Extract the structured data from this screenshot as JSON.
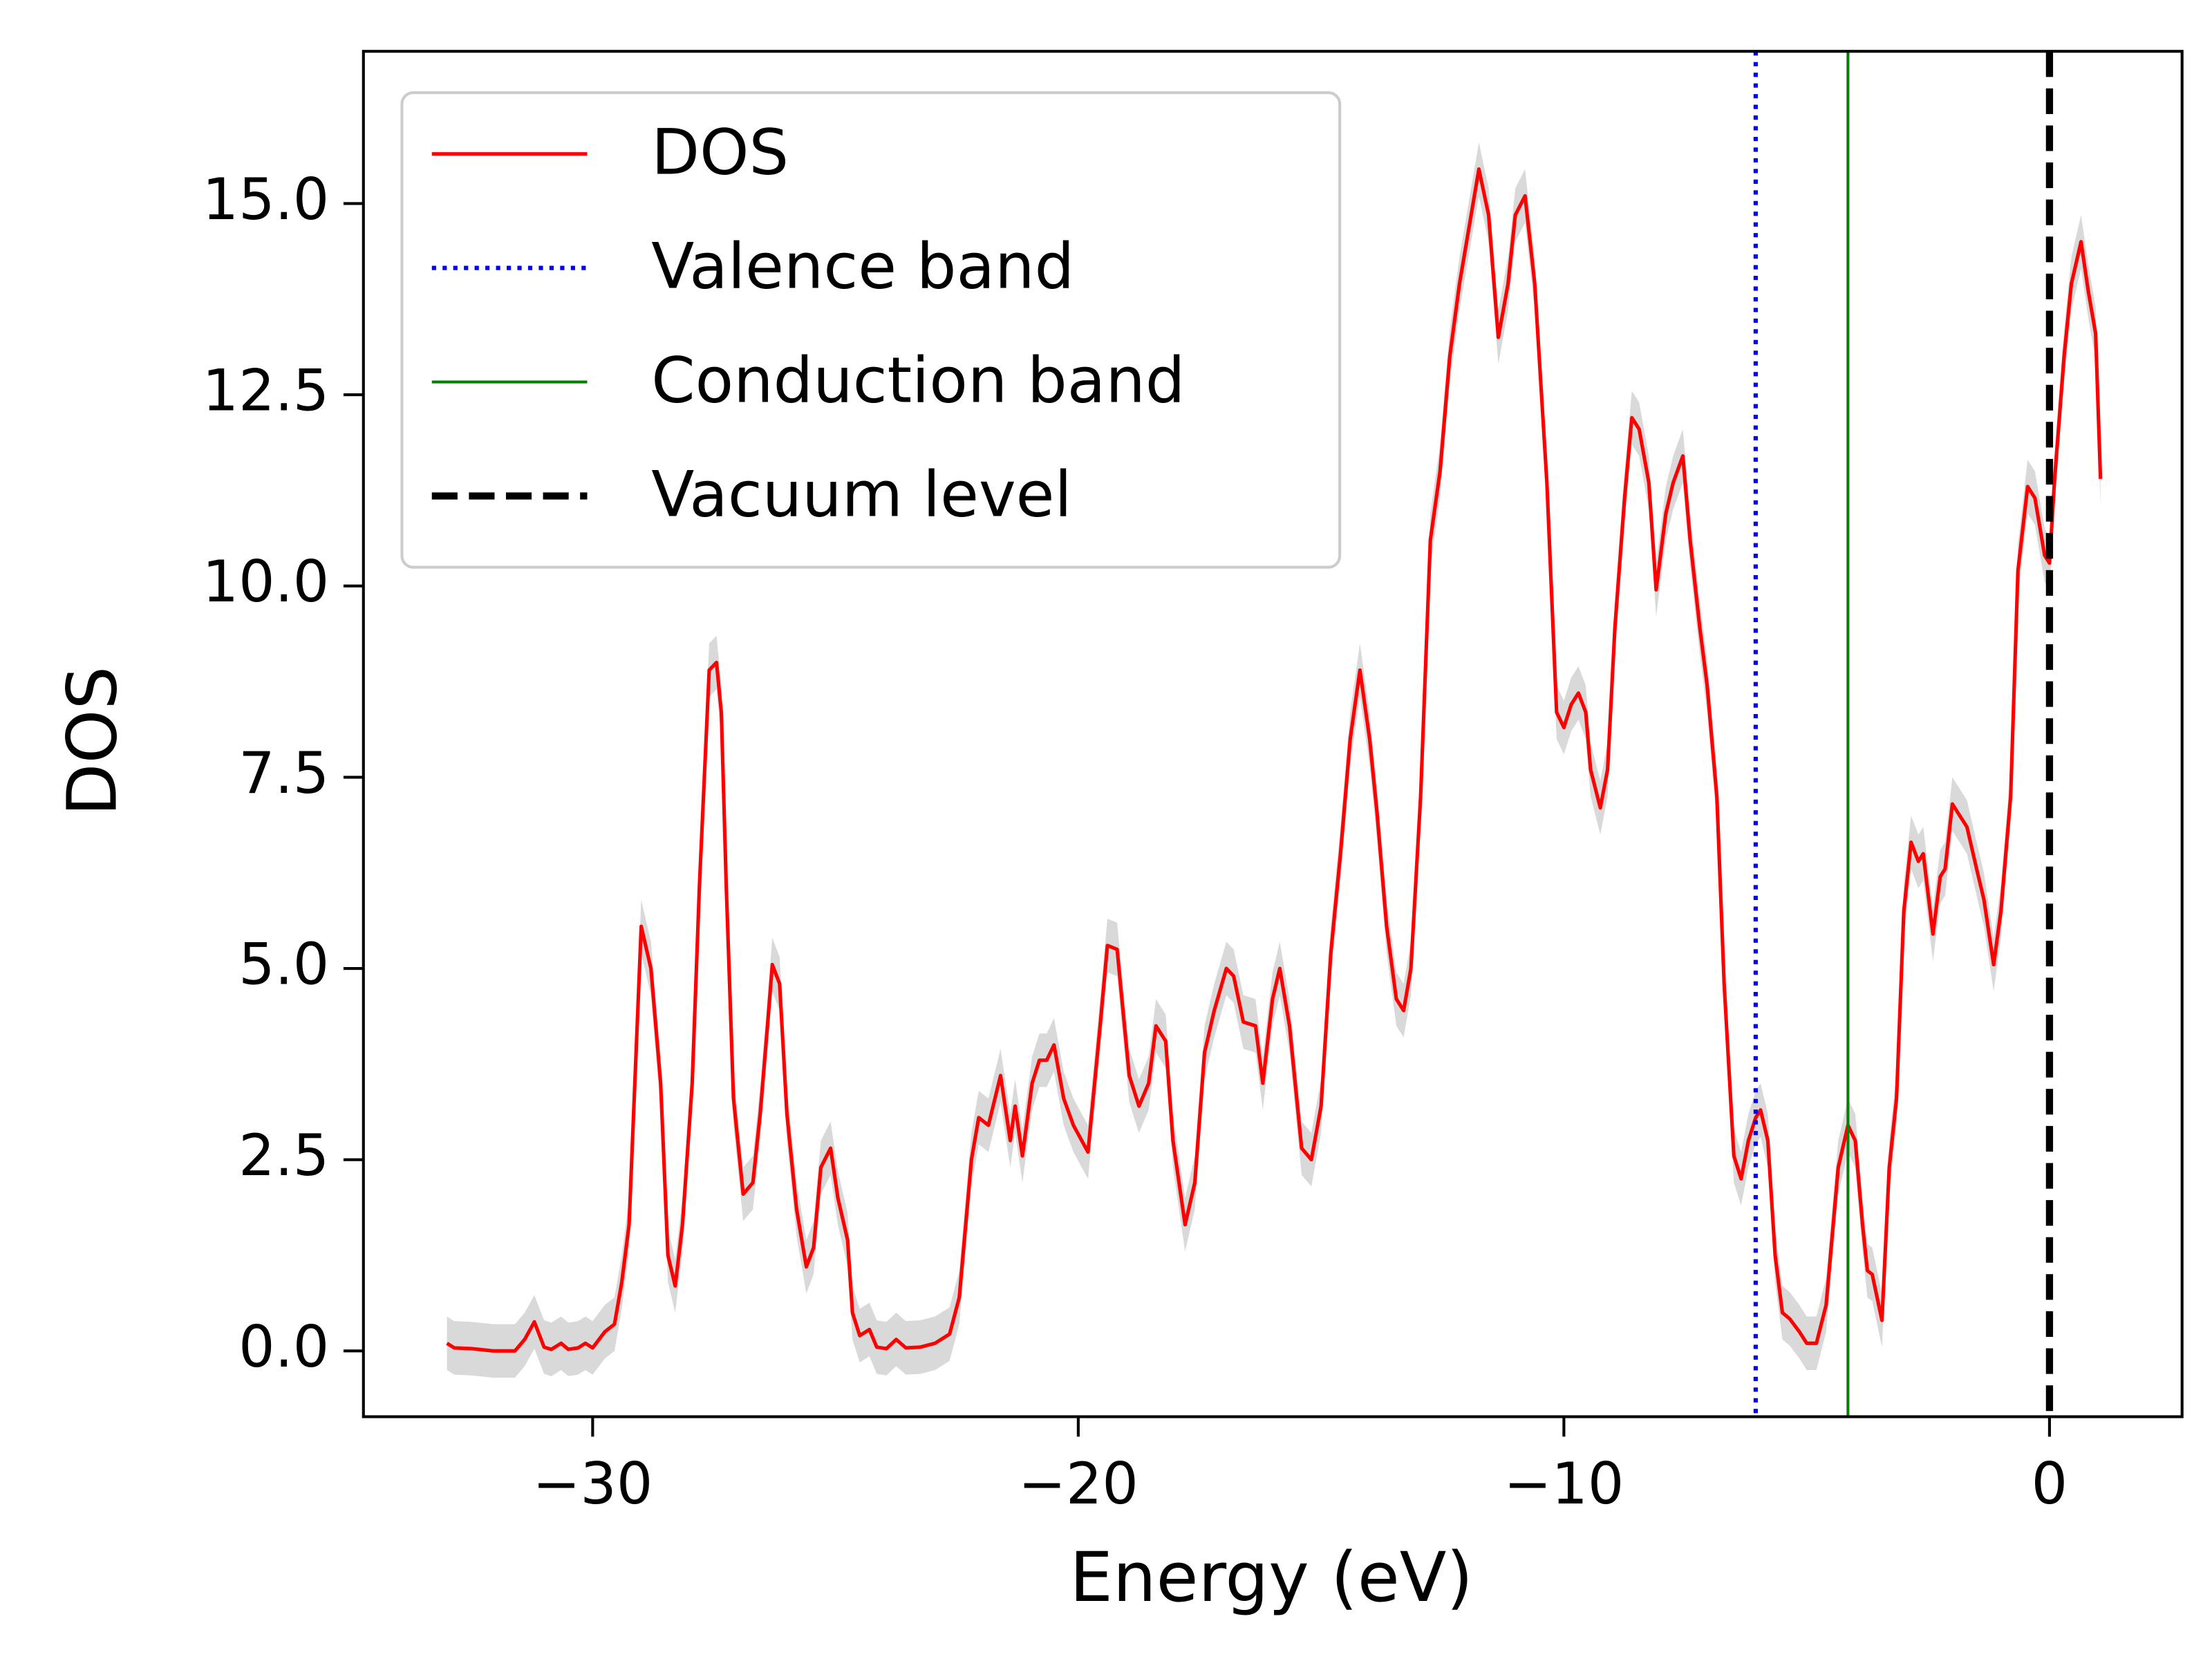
{
  "chart_data": {
    "type": "line",
    "xlabel": "Energy (eV)",
    "ylabel": "DOS",
    "x": [
      -33.0,
      -32.85,
      -32.5,
      -32.05,
      -31.6,
      -31.4,
      -31.2,
      -31.0,
      -30.85,
      -30.65,
      -30.5,
      -30.3,
      -30.15,
      -30.0,
      -29.75,
      -29.55,
      -29.4,
      -29.25,
      -29.0,
      -28.8,
      -28.6,
      -28.45,
      -28.3,
      -28.15,
      -27.95,
      -27.8,
      -27.6,
      -27.45,
      -27.35,
      -27.25,
      -27.1,
      -26.9,
      -26.7,
      -26.55,
      -26.4,
      -26.3,
      -26.15,
      -26.0,
      -25.8,
      -25.6,
      -25.45,
      -25.3,
      -25.1,
      -24.95,
      -24.75,
      -24.65,
      -24.5,
      -24.3,
      -24.15,
      -23.95,
      -23.75,
      -23.55,
      -23.25,
      -22.95,
      -22.65,
      -22.45,
      -22.2,
      -22.05,
      -21.85,
      -21.6,
      -21.4,
      -21.3,
      -21.15,
      -20.95,
      -20.8,
      -20.65,
      -20.5,
      -20.3,
      -20.1,
      -19.8,
      -19.55,
      -19.4,
      -19.2,
      -18.95,
      -18.75,
      -18.55,
      -18.4,
      -18.2,
      -18.05,
      -17.8,
      -17.6,
      -17.4,
      -17.2,
      -16.95,
      -16.8,
      -16.6,
      -16.35,
      -16.2,
      -16.0,
      -15.85,
      -15.65,
      -15.4,
      -15.2,
      -15.0,
      -14.8,
      -14.6,
      -14.4,
      -14.2,
      -14.0,
      -13.85,
      -13.65,
      -13.45,
      -13.3,
      -13.15,
      -12.95,
      -12.75,
      -12.55,
      -12.35,
      -12.15,
      -11.95,
      -11.75,
      -11.55,
      -11.35,
      -11.15,
      -11.0,
      -10.8,
      -10.6,
      -10.35,
      -10.15,
      -10.0,
      -9.85,
      -9.7,
      -9.55,
      -9.45,
      -9.25,
      -9.1,
      -8.95,
      -8.75,
      -8.6,
      -8.45,
      -8.25,
      -8.1,
      -7.9,
      -7.75,
      -7.55,
      -7.4,
      -7.2,
      -7.05,
      -6.85,
      -6.7,
      -6.5,
      -6.35,
      -6.2,
      -6.05,
      -5.95,
      -5.8,
      -5.65,
      -5.5,
      -5.35,
      -5.15,
      -5.0,
      -4.8,
      -4.6,
      -4.35,
      -4.15,
      -4.0,
      -3.85,
      -3.75,
      -3.65,
      -3.45,
      -3.3,
      -3.15,
      -3.0,
      -2.85,
      -2.7,
      -2.6,
      -2.4,
      -2.25,
      -2.15,
      -2.0,
      -1.85,
      -1.7,
      -1.5,
      -1.35,
      -1.15,
      -1.0,
      -0.8,
      -0.65,
      -0.45,
      -0.3,
      -0.1,
      0.0,
      0.1,
      0.3,
      0.45,
      0.65,
      0.8,
      0.95,
      1.05
    ],
    "series": [
      {
        "name": "DOS",
        "color": "#ff0000",
        "shade": 0.35,
        "shade_color": "#d9d9d9",
        "values": [
          0.1,
          0.04,
          0.03,
          0.0,
          0.0,
          0.15,
          0.38,
          0.05,
          0.02,
          0.1,
          0.02,
          0.04,
          0.1,
          0.04,
          0.25,
          0.35,
          0.9,
          1.65,
          5.55,
          5.0,
          3.5,
          1.25,
          0.85,
          1.65,
          3.5,
          6.1,
          8.9,
          9.0,
          8.35,
          6.1,
          3.3,
          2.05,
          2.2,
          3.1,
          4.25,
          5.05,
          4.8,
          3.1,
          1.85,
          1.1,
          1.35,
          2.4,
          2.65,
          2.0,
          1.45,
          0.5,
          0.2,
          0.28,
          0.05,
          0.03,
          0.15,
          0.04,
          0.05,
          0.1,
          0.22,
          0.7,
          2.5,
          3.05,
          2.95,
          3.6,
          2.75,
          3.2,
          2.55,
          3.5,
          3.8,
          3.8,
          4.0,
          3.3,
          2.95,
          2.6,
          4.25,
          5.3,
          5.25,
          3.6,
          3.2,
          3.5,
          4.25,
          4.05,
          2.75,
          1.65,
          2.2,
          3.9,
          4.45,
          5.0,
          4.9,
          4.3,
          4.25,
          3.5,
          4.6,
          5.0,
          4.25,
          2.65,
          2.5,
          3.2,
          5.2,
          6.5,
          8.0,
          8.9,
          8.0,
          7.05,
          5.55,
          4.6,
          4.45,
          5.0,
          7.25,
          10.6,
          11.5,
          13.0,
          13.95,
          14.7,
          15.45,
          14.85,
          13.25,
          13.95,
          14.85,
          15.1,
          13.95,
          11.35,
          8.35,
          8.15,
          8.45,
          8.6,
          8.35,
          7.6,
          7.1,
          7.6,
          9.45,
          11.15,
          12.2,
          12.05,
          11.35,
          9.95,
          10.95,
          11.35,
          11.7,
          10.6,
          9.45,
          8.7,
          7.25,
          4.8,
          2.55,
          2.25,
          2.75,
          3.05,
          3.15,
          2.75,
          1.25,
          0.5,
          0.42,
          0.25,
          0.1,
          0.1,
          0.6,
          2.4,
          2.95,
          2.75,
          1.65,
          1.05,
          1.0,
          0.4,
          2.4,
          3.3,
          5.75,
          6.65,
          6.4,
          6.5,
          5.45,
          6.2,
          6.3,
          7.15,
          7.0,
          6.85,
          6.3,
          5.9,
          5.05,
          5.75,
          7.25,
          10.2,
          11.3,
          11.15,
          10.4,
          10.3,
          11.35,
          13.0,
          13.95,
          14.5,
          13.85,
          13.3,
          11.4
        ]
      }
    ],
    "vlines": [
      {
        "name": "Valence band",
        "x": -6.05,
        "color": "#0000ff",
        "style": "dotted"
      },
      {
        "name": "Conduction band",
        "x": -4.15,
        "color": "#008000",
        "style": "solid"
      },
      {
        "name": "Vacuum level",
        "x": 0,
        "color": "#000000",
        "style": "dashed"
      }
    ],
    "xlim": [
      -34.72,
      2.73
    ],
    "ylim": [
      -0.86,
      16.99
    ],
    "xticks": [
      {
        "value": -30,
        "label": "−30"
      },
      {
        "value": -20,
        "label": "−20"
      },
      {
        "value": -10,
        "label": "−10"
      },
      0
    ],
    "yticks": [
      {
        "value": 0,
        "label": "0.0"
      },
      2.5,
      {
        "value": 5,
        "label": "5.0"
      },
      7.5,
      {
        "value": 10,
        "label": "10.0"
      },
      12.5,
      {
        "value": 15,
        "label": "15.0"
      }
    ],
    "legend": "upper left",
    "grid": false
  }
}
